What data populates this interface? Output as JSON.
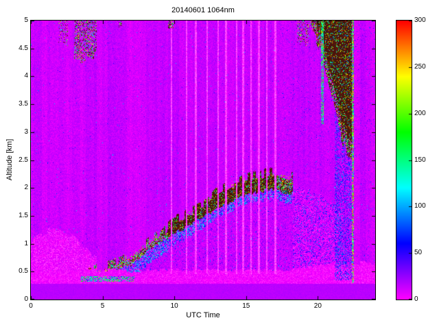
{
  "chart_data": {
    "type": "heatmap",
    "title": "20140601 1064nm",
    "xlabel": "UTC Time",
    "ylabel": "Altitude [km]",
    "x_range": [
      0,
      24
    ],
    "y_range": [
      0,
      5
    ],
    "x_ticks": [
      0,
      5,
      10,
      15,
      20
    ],
    "y_ticks": [
      0,
      0.5,
      1,
      1.5,
      2,
      2.5,
      3,
      3.5,
      4,
      4.5,
      5
    ],
    "colorbar": {
      "min": 0,
      "max": 300,
      "ticks": [
        0,
        50,
        100,
        150,
        200,
        250,
        300
      ]
    },
    "colormap": {
      "type": "hsv-reversed",
      "low_hue": 300,
      "high_hue": 0,
      "over_color": "#5e2113",
      "under_color": "#ffc0ff"
    },
    "background_value": 12,
    "features": {
      "surface_layer": {
        "top_km": 0.28,
        "value": 16
      },
      "shallow_pink_band": {
        "top_km": 0.52,
        "value": 2
      },
      "boundary_layer_top": {
        "x": [
          4,
          5,
          6,
          7,
          8,
          9,
          10,
          11,
          12,
          13,
          14,
          15,
          16,
          17,
          18
        ],
        "h": [
          0.38,
          0.45,
          0.55,
          0.72,
          0.9,
          1.05,
          1.25,
          1.42,
          1.55,
          1.75,
          1.9,
          2.0,
          2.06,
          2.1,
          2.02
        ]
      },
      "morning_fuzz": {
        "x": [
          0,
          1.5,
          3,
          4.5
        ],
        "top": [
          1.05,
          1.3,
          1.15,
          0.7
        ]
      },
      "afternoon_haze": {
        "x0": 17.6,
        "x1": 21.6,
        "z0": 0.55,
        "x": [
          17.6,
          19,
          20.5,
          21.6
        ],
        "top": [
          2.0,
          1.95,
          1.8,
          1.6
        ]
      },
      "light_streaks_utc": [
        9.8,
        10.85,
        11.5,
        12.3,
        13.05,
        13.6,
        14.35,
        14.8,
        15.35,
        15.9,
        16.45,
        17.05
      ],
      "top_specks": [
        {
          "x0": 1.9,
          "x1": 2.6,
          "zmin": 4.6,
          "p": 0.1
        },
        {
          "x0": 3.0,
          "x1": 4.6,
          "zmin": 4.3,
          "p": 0.18
        },
        {
          "x0": 6.1,
          "x1": 6.35,
          "zmin": 4.85,
          "p": 0.12
        },
        {
          "x0": 9.55,
          "x1": 9.95,
          "zmin": 4.8,
          "p": 0.25
        },
        {
          "x0": 18.55,
          "x1": 19.4,
          "zmin": 4.55,
          "p": 0.12
        }
      ],
      "right_cloud": {
        "x": [
          19.45,
          20.0,
          20.5,
          21.0,
          21.5,
          22.0,
          22.3,
          22.5
        ],
        "bottom": [
          5.0,
          4.55,
          4.15,
          3.6,
          3.05,
          2.7,
          2.58,
          2.5
        ],
        "end_utc": 22.52
      },
      "cyan_streak": {
        "utc": 20.33,
        "zmin": 3.15,
        "halfwidth": 0.09
      },
      "virga": {
        "x0": 21.2,
        "x1": 22.5,
        "z0": 0.35
      },
      "edge_column": {
        "utc": 22.43,
        "z0": 0.3,
        "halfwidth": 0.07
      }
    }
  }
}
